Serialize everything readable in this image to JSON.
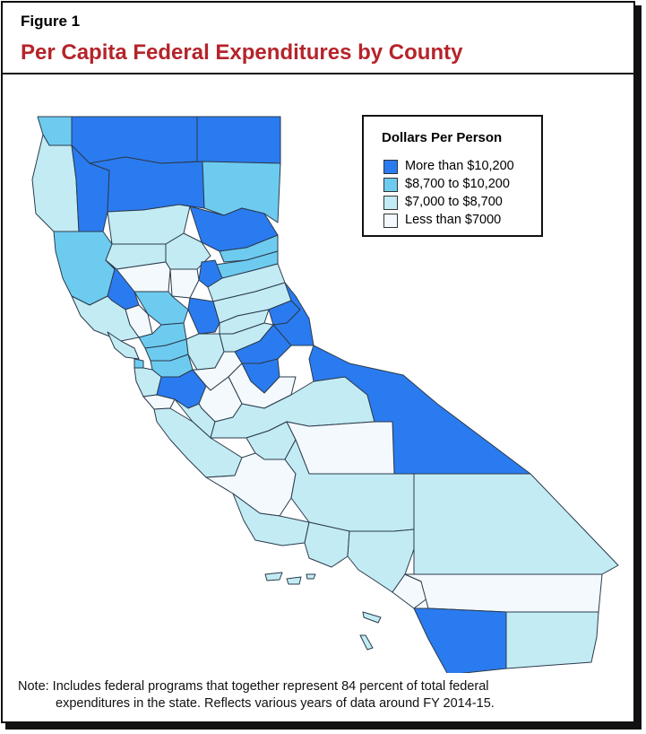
{
  "figure_label": "Figure 1",
  "title": "Per Capita Federal Expenditures by County",
  "legend": {
    "title": "Dollars Per Person",
    "items": [
      {
        "label": "More than $10,200",
        "color": "#2b7bf0"
      },
      {
        "label": "$8,700 to $10,200",
        "color": "#6ecbf0"
      },
      {
        "label": "$7,000 to $8,700",
        "color": "#c3ebf4"
      },
      {
        "label": "Less than $7000",
        "color": "#f3f9fd"
      }
    ]
  },
  "note": {
    "line1": "Note: Includes federal programs that together represent 84 percent of total federal",
    "line2": "expenditures in the state. Reflects various years of data around FY 2014-15."
  },
  "colors": {
    "title": "#b5242b",
    "border": "#111111",
    "county_stroke": "#2a3b4c"
  }
}
